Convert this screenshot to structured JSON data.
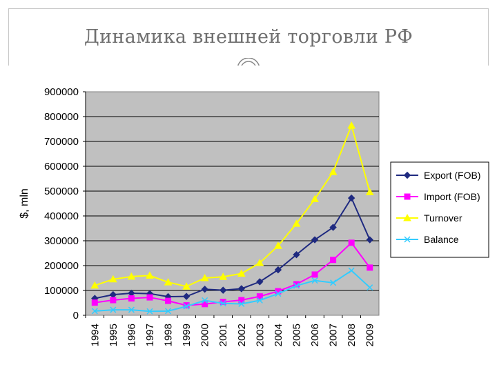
{
  "slide": {
    "title": "Динамика внешней торговли РФ"
  },
  "colors": {
    "plot_bg": "#c0c0c0",
    "export": "#1f2a80",
    "import": "#ff00ff",
    "turnover": "#ffff00",
    "balance": "#33ccff"
  },
  "chart_data": {
    "type": "line",
    "title": "",
    "xlabel": "",
    "ylabel": "$, mln",
    "ylim": [
      0,
      900000
    ],
    "yticks": [
      "0",
      "100000",
      "200000",
      "300000",
      "400000",
      "500000",
      "600000",
      "700000",
      "800000",
      "900000"
    ],
    "x": [
      "1994",
      "1995",
      "1996",
      "1997",
      "1998",
      "1999",
      "2000",
      "2001",
      "2002",
      "2003",
      "2004",
      "2005",
      "2006",
      "2007",
      "2008",
      "2009"
    ],
    "grid": true,
    "legend_position": "right",
    "series": [
      {
        "name": "Export (FOB)",
        "marker": "diamond",
        "color": "#1f2a80",
        "values": [
          68000,
          83000,
          89000,
          87000,
          75000,
          76000,
          105000,
          101000,
          107000,
          135000,
          183000,
          244000,
          304000,
          354000,
          472000,
          304000
        ]
      },
      {
        "name": "Import (FOB)",
        "marker": "square",
        "color": "#ff00ff",
        "values": [
          51000,
          61000,
          68000,
          72000,
          58000,
          40000,
          45000,
          54000,
          61000,
          76000,
          97000,
          125000,
          164000,
          223000,
          292000,
          192000
        ]
      },
      {
        "name": "Turnover",
        "marker": "triangle",
        "color": "#ffff00",
        "values": [
          120000,
          145000,
          156000,
          160000,
          133000,
          116000,
          150000,
          155000,
          168000,
          211000,
          280000,
          369000,
          468000,
          577000,
          764000,
          496000
        ]
      },
      {
        "name": "Balance",
        "marker": "x",
        "color": "#33ccff",
        "values": [
          17000,
          22000,
          22000,
          16000,
          17000,
          36000,
          60000,
          48000,
          46000,
          60000,
          87000,
          119000,
          140000,
          131000,
          180000,
          112000
        ]
      }
    ]
  }
}
